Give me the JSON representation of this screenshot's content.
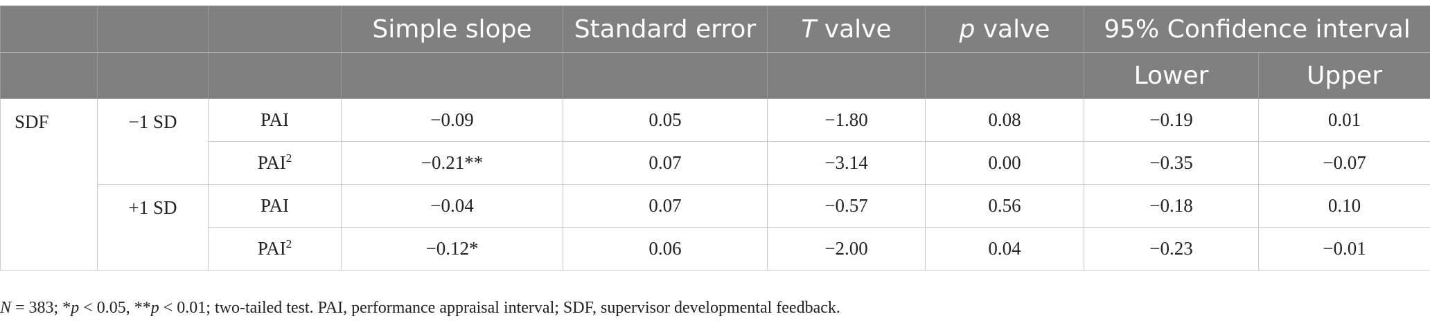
{
  "header": {
    "simple_slope": "Simple slope",
    "standard_error": "Standard error",
    "t_italic": "T",
    "t_rest": " valve",
    "p_italic": "p",
    "p_rest": " valve",
    "ci": "95% Confidence interval",
    "lower": "Lower",
    "upper": "Upper"
  },
  "body": {
    "moderator": "SDF",
    "groups": [
      {
        "label": "−1 SD",
        "rows": [
          {
            "predictor": "PAI",
            "sup": "",
            "slope": "−0.09",
            "se": "0.05",
            "t": "−1.80",
            "p": "0.08",
            "lower": "−0.19",
            "upper": "0.01"
          },
          {
            "predictor": "PAI",
            "sup": "2",
            "slope": "−0.21**",
            "se": "0.07",
            "t": "−3.14",
            "p": "0.00",
            "lower": "−0.35",
            "upper": "−0.07"
          }
        ]
      },
      {
        "label": "+1 SD",
        "rows": [
          {
            "predictor": "PAI",
            "sup": "",
            "slope": "−0.04",
            "se": "0.07",
            "t": "−0.57",
            "p": "0.56",
            "lower": "−0.18",
            "upper": "0.10"
          },
          {
            "predictor": "PAI",
            "sup": "2",
            "slope": "−0.12*",
            "se": "0.06",
            "t": "−2.00",
            "p": "0.04",
            "lower": "−0.23",
            "upper": "−0.01"
          }
        ]
      }
    ]
  },
  "note": {
    "n_italic": "N",
    "n_rest": " = 383; *",
    "p1_italic": "p",
    "p1_rest": " < 0.05, **",
    "p2_italic": "p",
    "p2_rest": " < 0.01; two-tailed test. PAI, performance appraisal interval; SDF, supervisor developmental feedback."
  }
}
